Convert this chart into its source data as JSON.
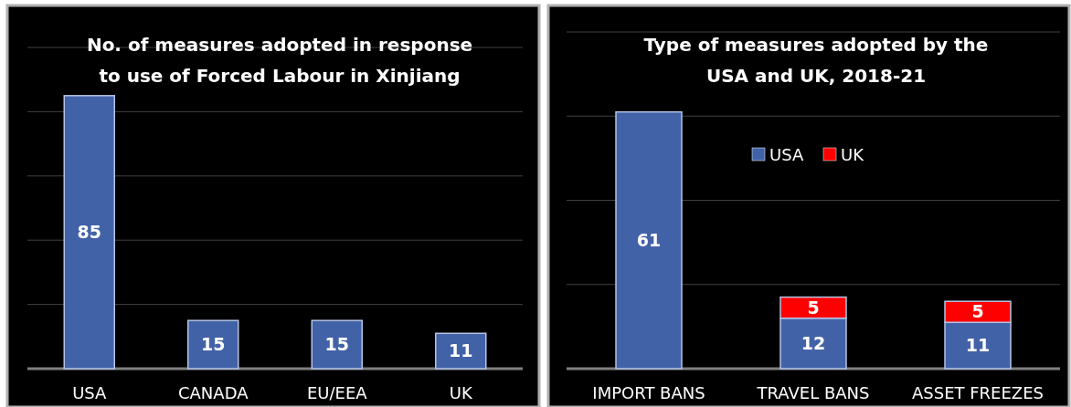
{
  "chart_data": [
    {
      "type": "bar",
      "title": "No. of measures adopted in response\nto use of Forced Labour in Xinjiang",
      "categories": [
        "USA",
        "CANADA",
        "EU/EEA",
        "UK"
      ],
      "values": [
        85,
        15,
        15,
        11
      ],
      "color": "#4262a8",
      "ylim": [
        0,
        100
      ],
      "yticks": [
        {
          "value": 0,
          "label": null
        },
        {
          "value": 20,
          "label": null
        },
        {
          "value": 40,
          "label": null
        },
        {
          "value": 60,
          "label": null
        },
        {
          "value": 80,
          "label": null
        },
        {
          "value": 100,
          "label": null
        }
      ],
      "tick_labels": "x",
      "grid": "y",
      "data_labels": true
    },
    {
      "type": "bar",
      "title": "Type of measures adopted by the\nUSA and UK, 2018-21",
      "categories": [
        "IMPORT BANS",
        "TRAVEL BANS",
        "ASSET FREEZES"
      ],
      "stacked": true,
      "series": [
        {
          "name": "USA",
          "color": "#4262a8",
          "values": [
            61,
            12,
            11
          ]
        },
        {
          "name": "UK",
          "color": "#ff0000",
          "values": [
            null,
            5,
            5
          ]
        }
      ],
      "ylim": [
        0,
        80
      ],
      "yticks": [
        {
          "value": 0,
          "label": null
        },
        {
          "value": 20,
          "label": null
        },
        {
          "value": 40,
          "label": null
        },
        {
          "value": 60,
          "label": null
        },
        {
          "value": 80,
          "label": null
        }
      ],
      "tick_labels": "x",
      "grid": "y",
      "data_labels": true,
      "legend": "top"
    }
  ]
}
